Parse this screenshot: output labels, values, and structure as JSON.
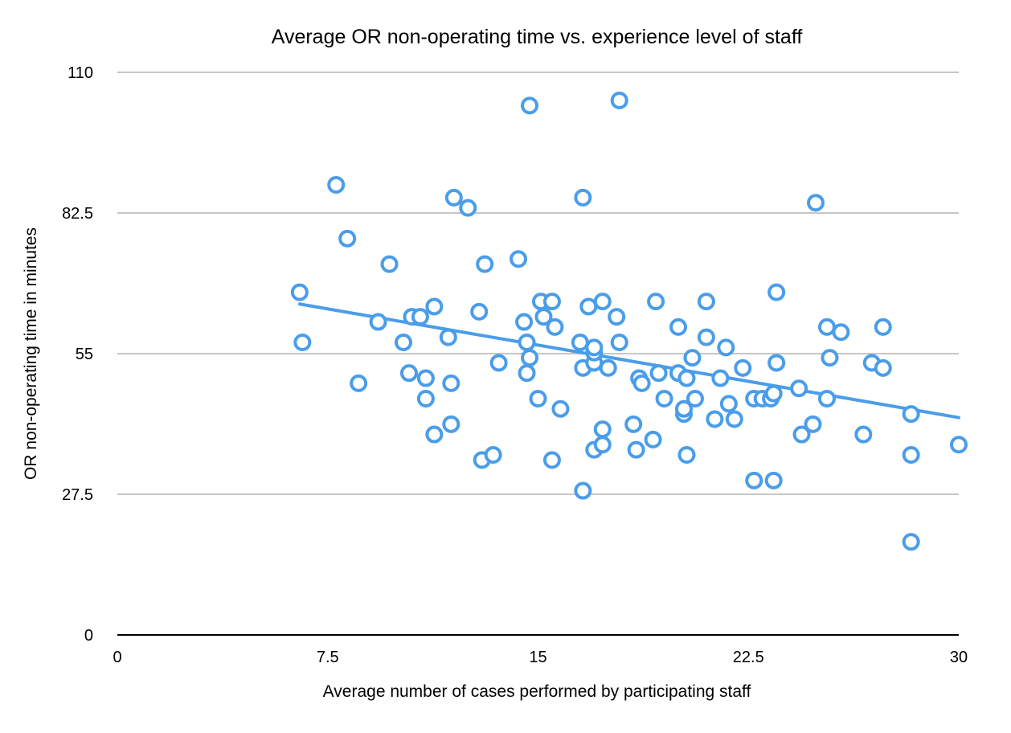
{
  "chart_data": {
    "type": "scatter",
    "title": "Average OR non-operating time vs. experience level of staff",
    "xlabel": "Average number of cases performed by participating staff",
    "ylabel": "OR non-operating time in minutes",
    "xlim": [
      0,
      30
    ],
    "ylim": [
      0,
      110
    ],
    "x_ticks": [
      "0",
      "7.5",
      "15",
      "22.5",
      "30"
    ],
    "y_ticks": [
      "0",
      "27.5",
      "55",
      "82.5",
      "110"
    ],
    "grid": "horizontal",
    "legend": "none",
    "colors": {
      "points": "#4A9DEA",
      "trendline": "#4A9DEA",
      "gridline": "#C6C6C6",
      "baseline": "#000000"
    },
    "trendline": {
      "type": "linear",
      "start": [
        6.5,
        64.7
      ],
      "end": [
        30,
        42.5
      ]
    },
    "series": [
      {
        "points": [
          [
            6.5,
            67
          ],
          [
            6.6,
            57.2
          ],
          [
            7.8,
            88
          ],
          [
            8.2,
            77.5
          ],
          [
            8.6,
            49.2
          ],
          [
            9.3,
            61.2
          ],
          [
            9.7,
            72.5
          ],
          [
            10.2,
            57.2
          ],
          [
            10.4,
            51.2
          ],
          [
            10.5,
            62.2
          ],
          [
            10.8,
            62.2
          ],
          [
            11.0,
            50.2
          ],
          [
            11.0,
            46.2
          ],
          [
            11.3,
            64.2
          ],
          [
            11.3,
            39.2
          ],
          [
            11.8,
            58.2
          ],
          [
            11.9,
            49.2
          ],
          [
            11.9,
            41.2
          ],
          [
            12.0,
            85.5
          ],
          [
            12.5,
            83.5
          ],
          [
            12.9,
            63.2
          ],
          [
            13.0,
            34.2
          ],
          [
            13.1,
            72.5
          ],
          [
            13.4,
            35.2
          ],
          [
            13.6,
            53.2
          ],
          [
            14.3,
            73.5
          ],
          [
            14.5,
            61.2
          ],
          [
            14.6,
            57.2
          ],
          [
            14.6,
            51.2
          ],
          [
            14.7,
            103.5
          ],
          [
            14.7,
            54.2
          ],
          [
            15.0,
            46.2
          ],
          [
            15.1,
            65.2
          ],
          [
            15.2,
            62.2
          ],
          [
            15.5,
            34.2
          ],
          [
            15.5,
            65.2
          ],
          [
            15.6,
            60.2
          ],
          [
            15.8,
            44.2
          ],
          [
            16.5,
            57.2
          ],
          [
            16.6,
            52.2
          ],
          [
            16.6,
            85.5
          ],
          [
            16.6,
            28.2
          ],
          [
            16.8,
            64.2
          ],
          [
            17.0,
            53.2
          ],
          [
            17.0,
            55.2
          ],
          [
            17.0,
            56.2
          ],
          [
            17.0,
            36.2
          ],
          [
            17.3,
            65.2
          ],
          [
            17.3,
            40.2
          ],
          [
            17.3,
            37.2
          ],
          [
            17.5,
            52.2
          ],
          [
            17.8,
            62.2
          ],
          [
            17.9,
            104.5
          ],
          [
            17.9,
            57.2
          ],
          [
            18.4,
            41.2
          ],
          [
            18.5,
            36.2
          ],
          [
            18.6,
            50.2
          ],
          [
            18.7,
            49.2
          ],
          [
            19.1,
            38.2
          ],
          [
            19.2,
            65.2
          ],
          [
            19.3,
            51.2
          ],
          [
            19.5,
            46.2
          ],
          [
            20.0,
            60.2
          ],
          [
            20.0,
            51.2
          ],
          [
            20.2,
            43.2
          ],
          [
            20.2,
            44.2
          ],
          [
            20.3,
            35.2
          ],
          [
            20.3,
            50.2
          ],
          [
            20.5,
            54.2
          ],
          [
            20.6,
            46.2
          ],
          [
            21.0,
            58.2
          ],
          [
            21.0,
            65.2
          ],
          [
            21.3,
            42.2
          ],
          [
            21.5,
            50.2
          ],
          [
            21.7,
            56.2
          ],
          [
            21.8,
            45.2
          ],
          [
            22.0,
            42.2
          ],
          [
            22.3,
            52.2
          ],
          [
            22.7,
            46.2
          ],
          [
            22.7,
            30.2
          ],
          [
            23.0,
            46.2
          ],
          [
            23.3,
            46.2
          ],
          [
            23.4,
            47.2
          ],
          [
            23.4,
            30.2
          ],
          [
            23.5,
            53.2
          ],
          [
            23.5,
            67
          ],
          [
            24.3,
            48.2
          ],
          [
            24.4,
            39.2
          ],
          [
            24.8,
            41.2
          ],
          [
            24.9,
            84.5
          ],
          [
            25.3,
            46.2
          ],
          [
            25.3,
            60.2
          ],
          [
            25.4,
            54.2
          ],
          [
            25.8,
            59.2
          ],
          [
            26.6,
            39.2
          ],
          [
            26.9,
            53.2
          ],
          [
            27.3,
            52.2
          ],
          [
            27.3,
            60.2
          ],
          [
            28.3,
            43.2
          ],
          [
            28.3,
            35.2
          ],
          [
            28.3,
            18.2
          ],
          [
            30.0,
            37.2
          ]
        ]
      }
    ]
  }
}
